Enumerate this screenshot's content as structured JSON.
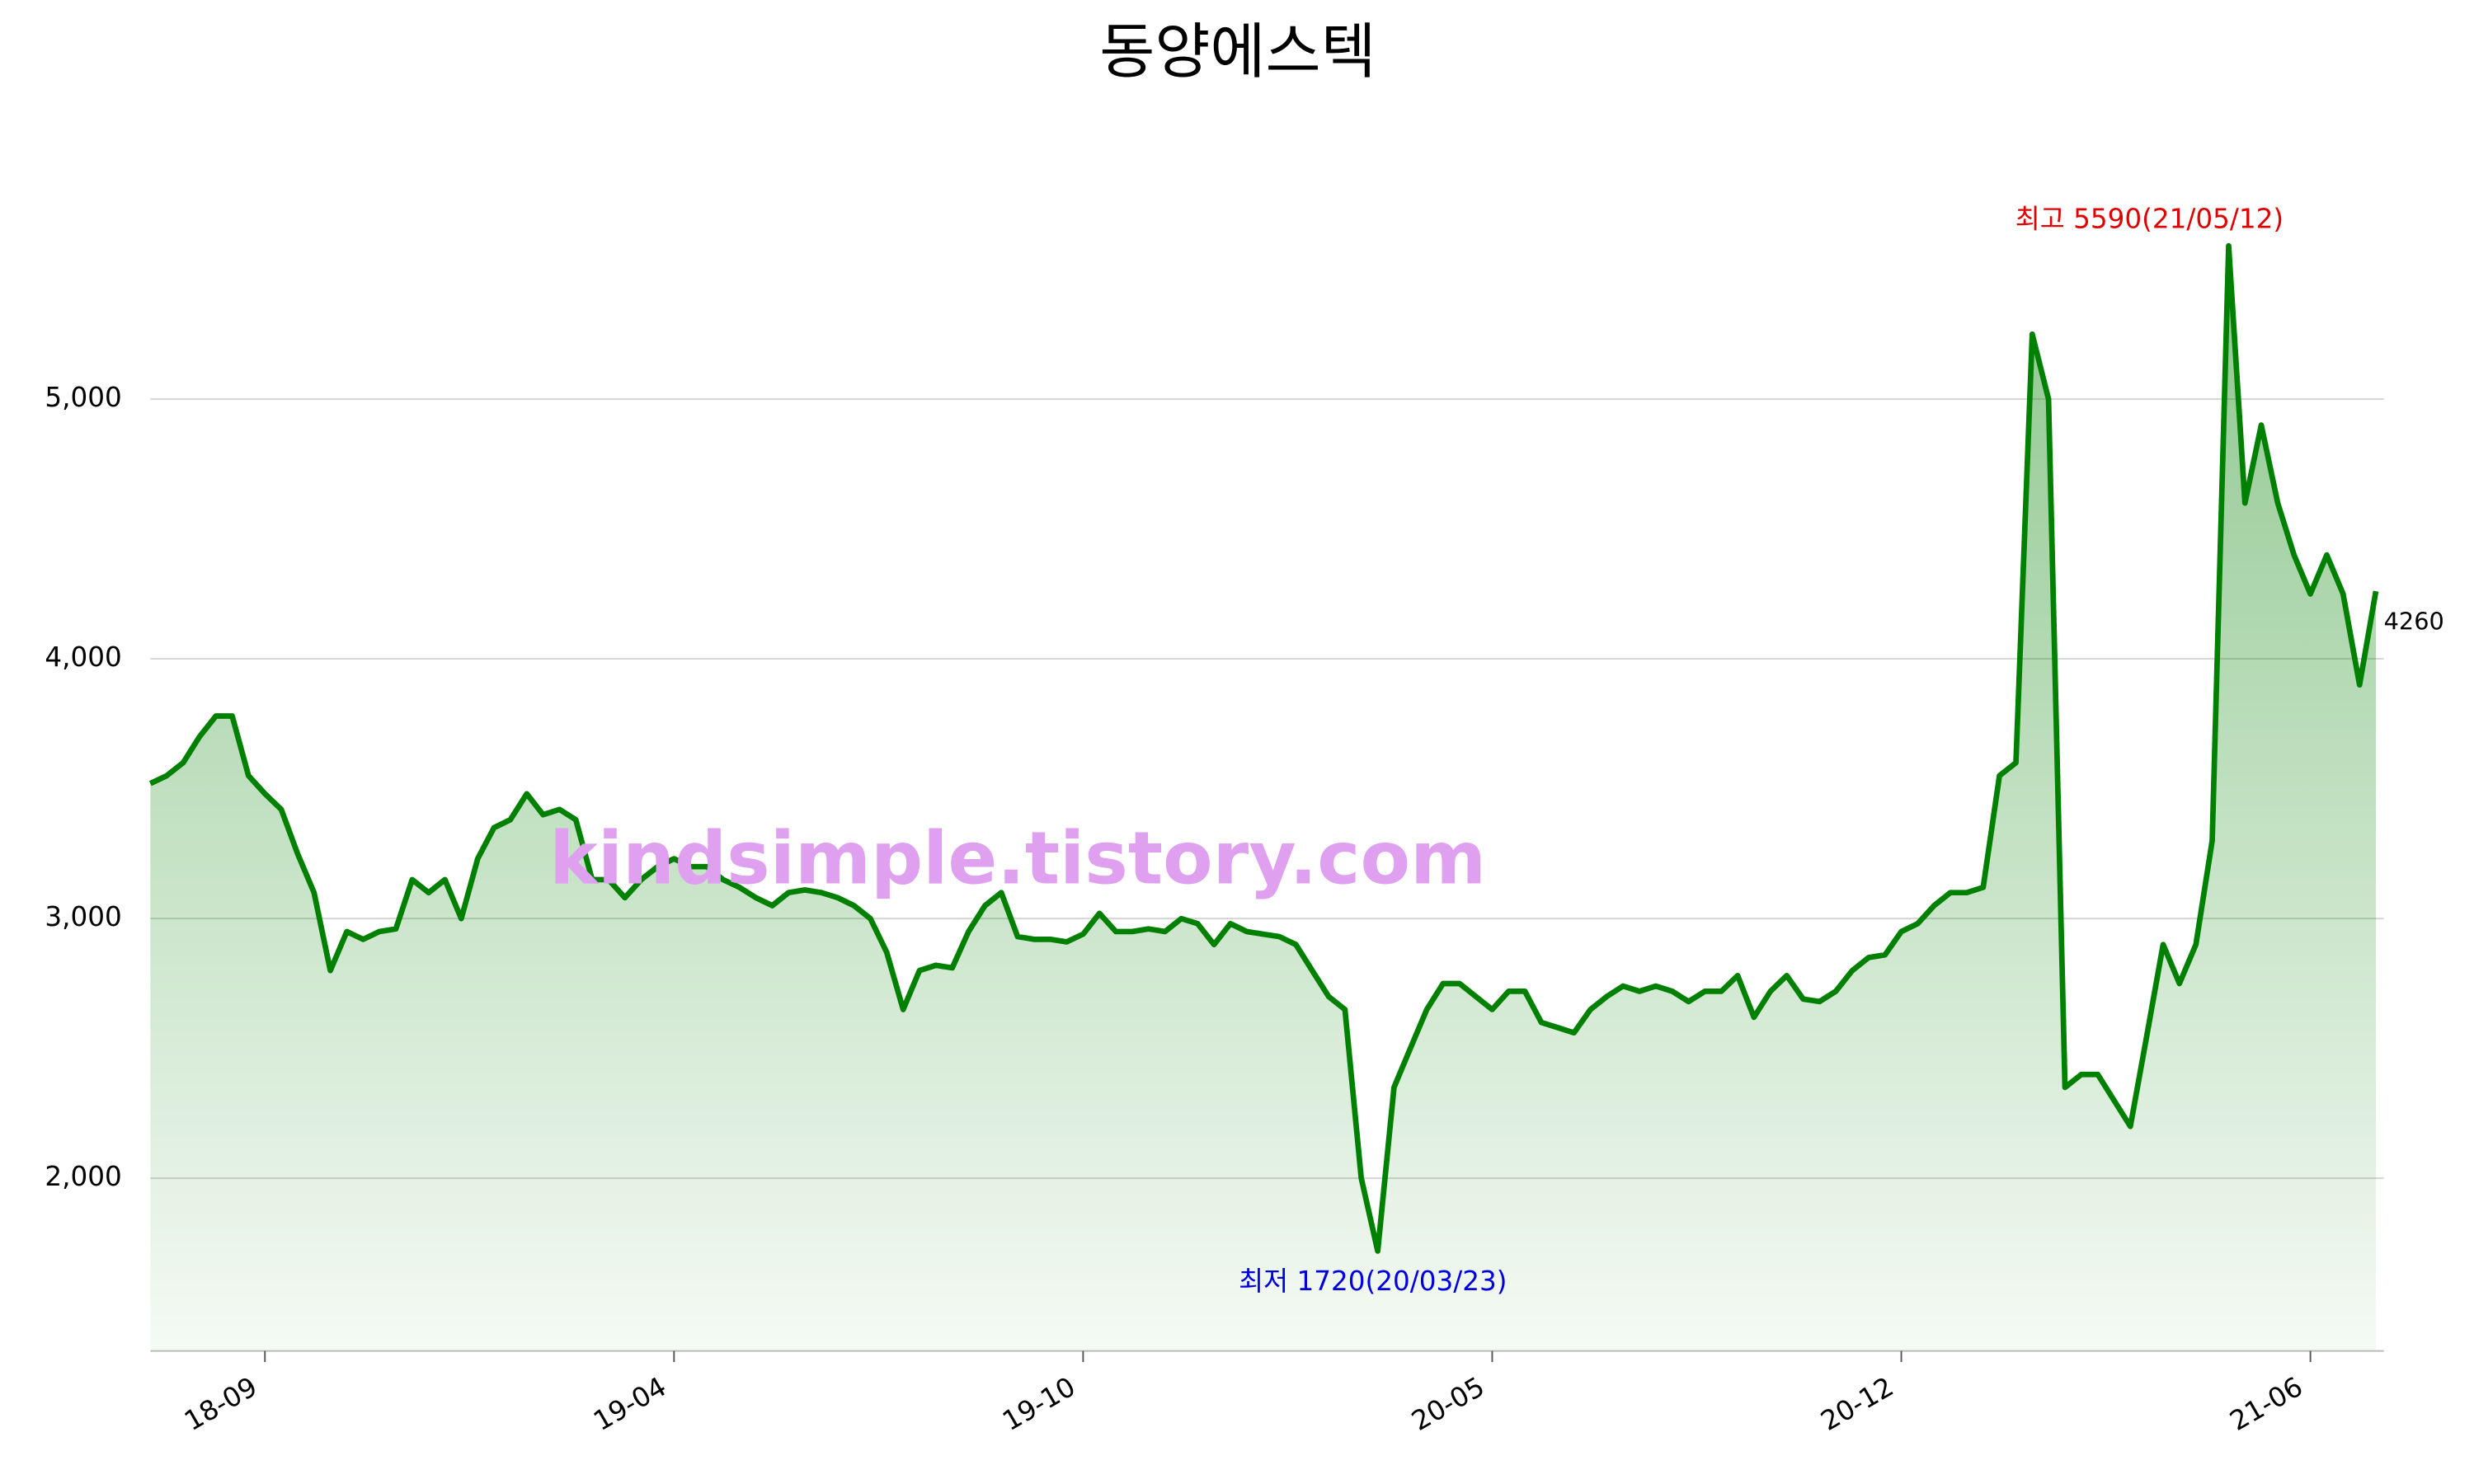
{
  "chart_data": {
    "type": "line",
    "title": "동양에스텍",
    "watermark": "kindsimple.tistory.com",
    "max_label": "최고 5590(21/05/12)",
    "min_label": "최저 1720(20/03/23)",
    "color": "#008000",
    "grid": true,
    "ylim": [
      1335,
      5900
    ],
    "yticks": [
      {
        "value": 2000,
        "label": "2,000"
      },
      {
        "value": 3000,
        "label": "3,000"
      },
      {
        "value": 4000,
        "label": "4,000"
      },
      {
        "value": 5000,
        "label": "5,000"
      }
    ],
    "categories": [
      null,
      null,
      null,
      null,
      null,
      null,
      null,
      "18-09",
      null,
      null,
      null,
      null,
      null,
      null,
      null,
      null,
      null,
      null,
      null,
      null,
      null,
      null,
      null,
      null,
      null,
      null,
      null,
      null,
      null,
      null,
      null,
      null,
      "19-04",
      null,
      null,
      null,
      null,
      null,
      null,
      null,
      null,
      null,
      null,
      null,
      null,
      null,
      null,
      null,
      null,
      null,
      null,
      null,
      null,
      null,
      null,
      null,
      null,
      "19-10",
      null,
      null,
      null,
      null,
      null,
      null,
      null,
      null,
      null,
      null,
      null,
      null,
      null,
      null,
      null,
      null,
      null,
      null,
      null,
      null,
      null,
      null,
      null,
      null,
      "20-05",
      null,
      null,
      null,
      null,
      null,
      null,
      null,
      null,
      null,
      null,
      null,
      null,
      null,
      null,
      null,
      null,
      null,
      null,
      null,
      null,
      null,
      null,
      null,
      null,
      "20-12",
      null,
      null,
      null,
      null,
      null,
      null,
      null,
      null,
      null,
      null,
      null,
      null,
      null,
      null,
      null,
      null,
      null,
      null,
      null,
      null,
      null,
      null,
      null,
      null,
      "21-06",
      null,
      null,
      null,
      null
    ],
    "values": [
      3520,
      3550,
      3600,
      3700,
      3780,
      3780,
      3550,
      3480,
      3420,
      3250,
      3100,
      2800,
      2950,
      2920,
      2950,
      2960,
      3150,
      3100,
      3150,
      3000,
      3230,
      3350,
      3380,
      3480,
      3400,
      3420,
      3380,
      3150,
      3150,
      3080,
      3150,
      3200,
      3230,
      3200,
      3200,
      3150,
      3120,
      3080,
      3050,
      3100,
      3110,
      3100,
      3080,
      3050,
      3000,
      2870,
      2650,
      2800,
      2820,
      2810,
      2950,
      3050,
      3100,
      2930,
      2920,
      2920,
      2910,
      2940,
      3020,
      2950,
      2950,
      2960,
      2950,
      3000,
      2980,
      2900,
      2980,
      2950,
      2940,
      2930,
      2900,
      2800,
      2700,
      2650,
      2000,
      1720,
      2350,
      2500,
      2650,
      2750,
      2750,
      2700,
      2650,
      2720,
      2720,
      2600,
      2580,
      2560,
      2650,
      2700,
      2740,
      2720,
      2740,
      2720,
      2680,
      2720,
      2720,
      2780,
      2620,
      2720,
      2780,
      2690,
      2680,
      2720,
      2800,
      2850,
      2860,
      2950,
      2980,
      3050,
      3100,
      3100,
      3120,
      3550,
      3600,
      5250,
      5000,
      2350,
      2400,
      2400,
      2300,
      2200,
      2550,
      2900,
      2750,
      2900,
      3300,
      5590,
      4600,
      4900,
      4600,
      4400,
      4250,
      4400,
      4250,
      3900,
      4260
    ]
  }
}
